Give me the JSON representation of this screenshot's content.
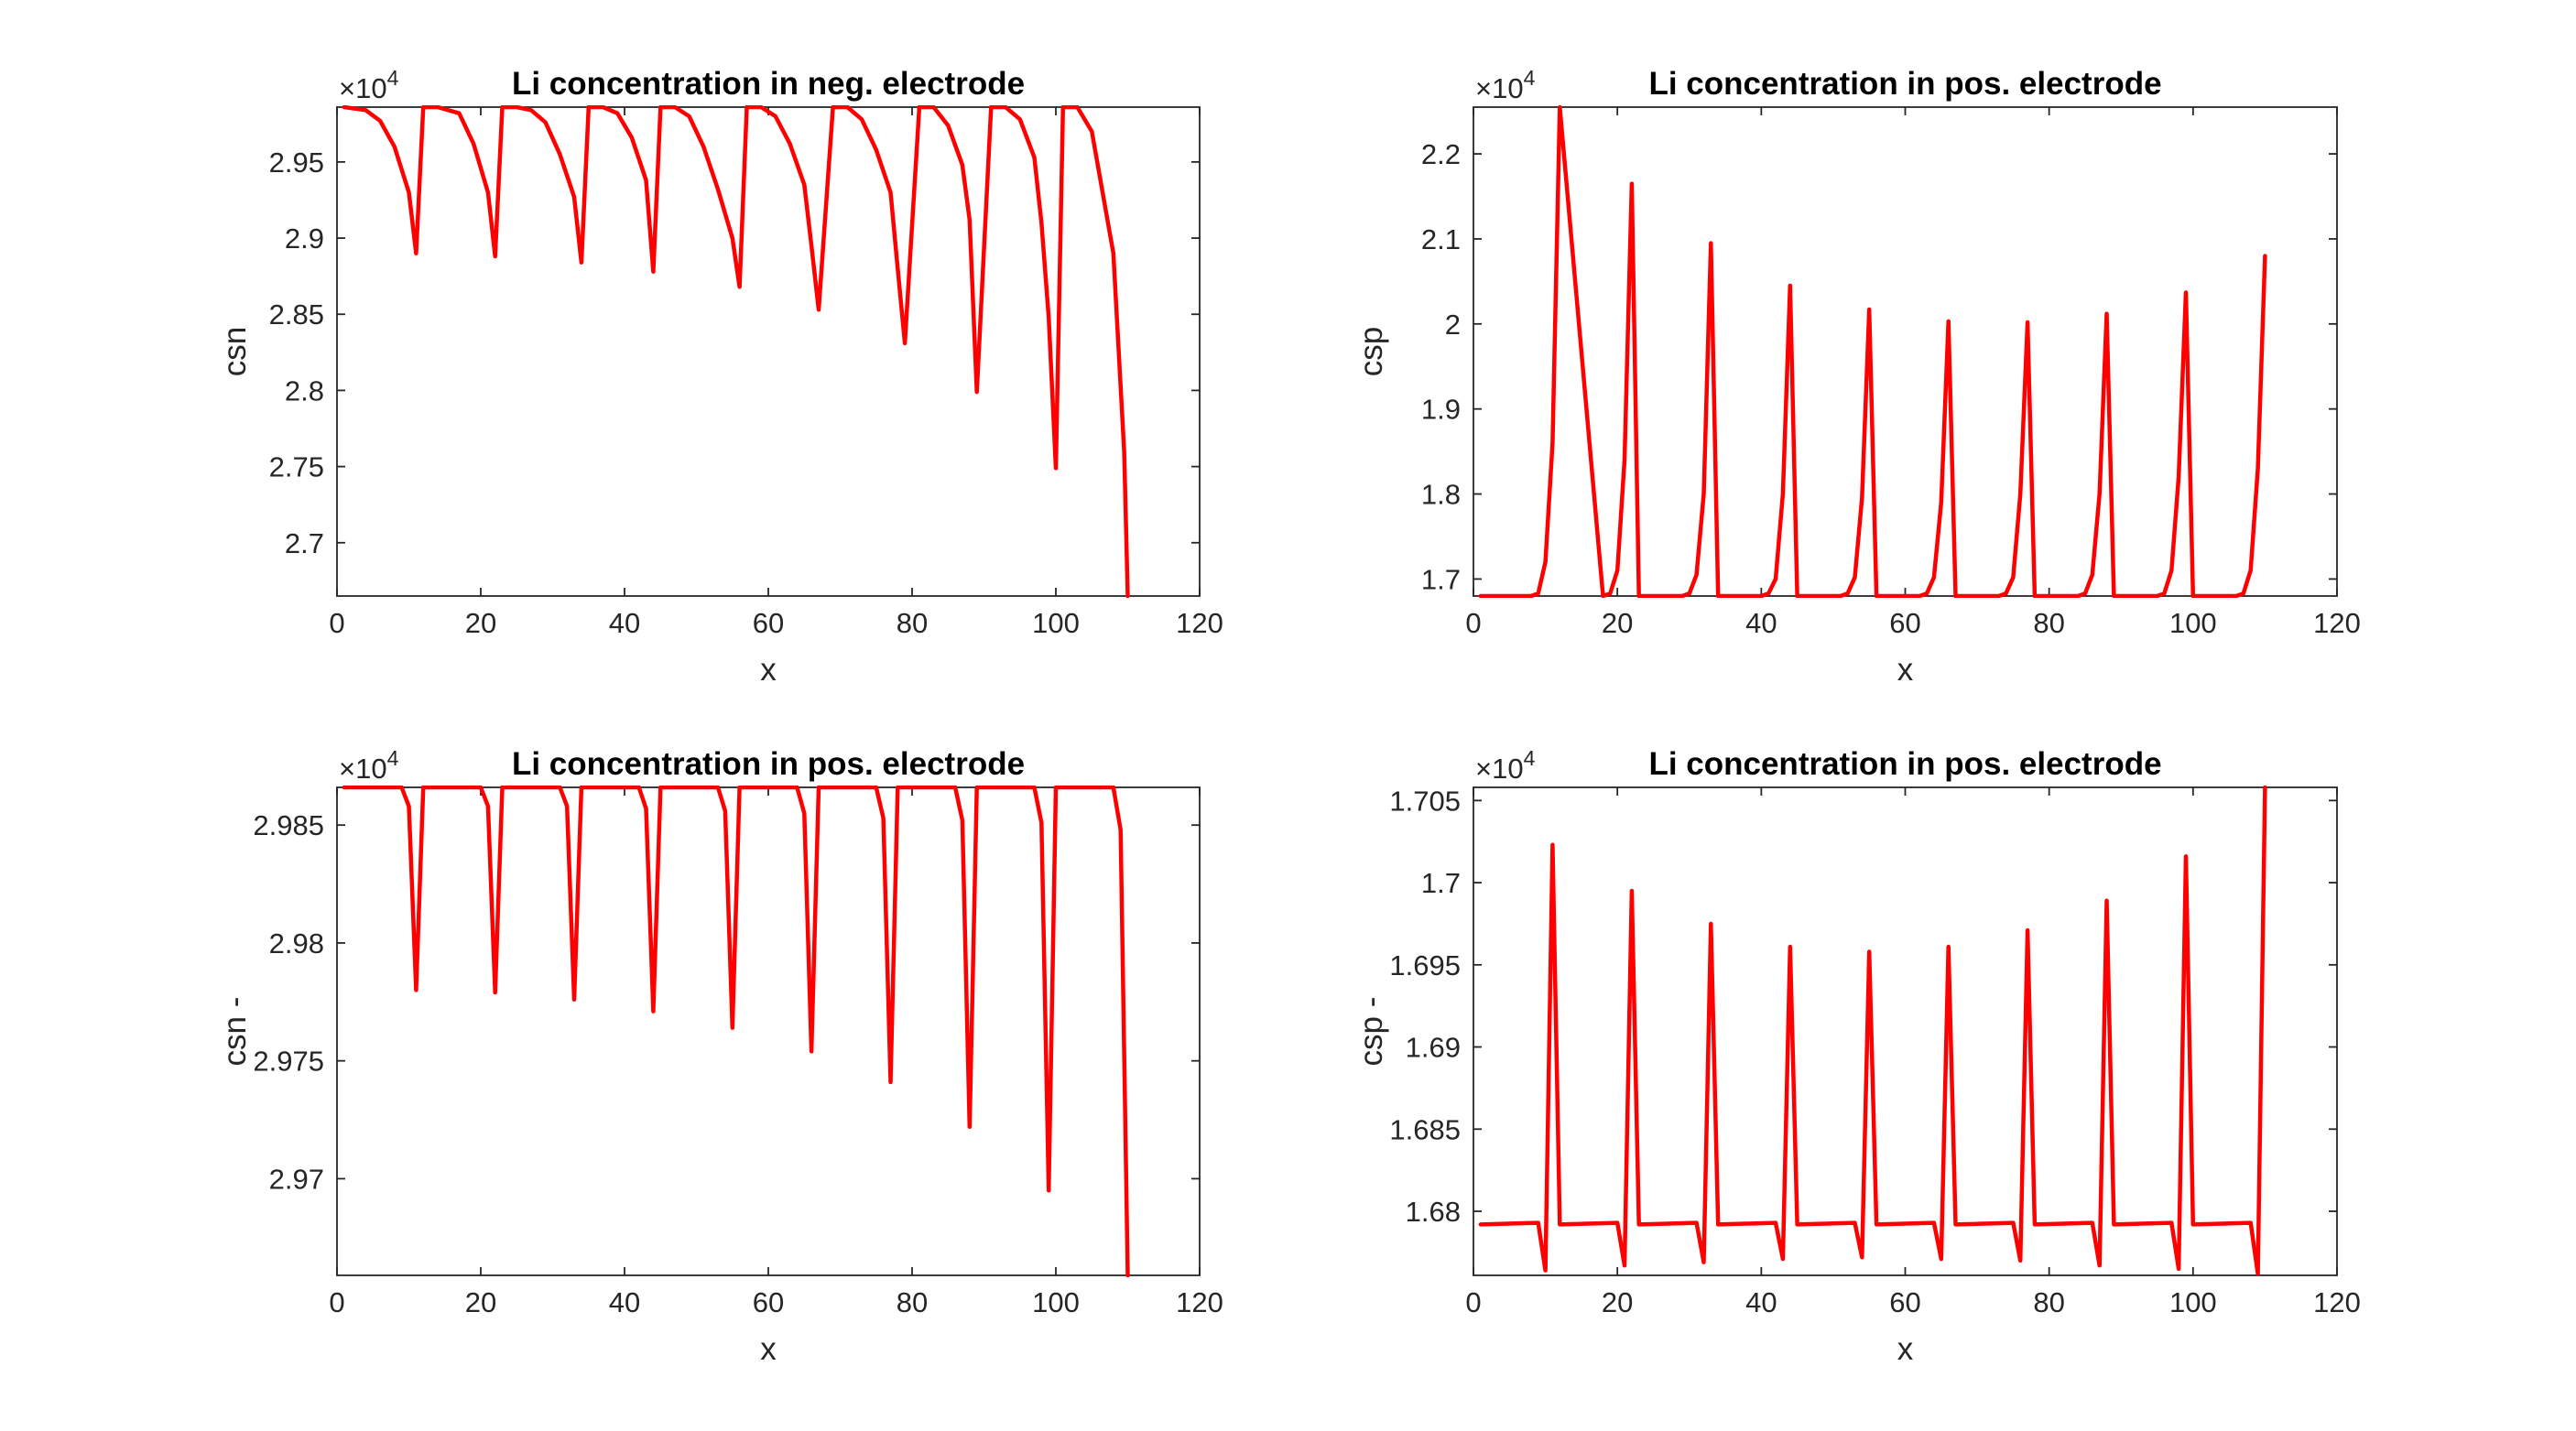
{
  "colors": {
    "series": "#ff0000",
    "axis": "#262626"
  },
  "chart_data": [
    {
      "type": "line",
      "title": "Li concentration in neg. electrode",
      "xlabel": "x",
      "ylabel": "csn",
      "exponent": "4",
      "multiplier": "×10",
      "xlim": [
        0,
        120
      ],
      "ylim": [
        2.665,
        2.986
      ],
      "xticks": [
        "0",
        "20",
        "40",
        "60",
        "80",
        "100",
        "120"
      ],
      "yticks": [
        "2.7",
        "2.75",
        "2.8",
        "2.85",
        "2.9",
        "2.95"
      ],
      "ytick_values": [
        2.7,
        2.75,
        2.8,
        2.85,
        2.9,
        2.95
      ],
      "x": [
        1,
        4,
        6,
        8,
        10,
        11,
        12,
        14,
        17,
        19,
        21,
        22,
        23,
        25,
        27,
        29,
        31,
        33,
        34,
        35,
        37,
        39,
        41,
        43,
        44,
        45,
        47,
        49,
        51,
        53,
        55,
        56,
        57,
        59,
        61,
        63,
        65,
        66,
        67,
        69,
        71,
        73,
        75,
        77,
        78,
        79,
        81,
        83,
        85,
        87,
        88,
        89,
        91,
        93,
        95,
        97,
        98,
        99,
        100,
        101,
        103,
        105,
        108,
        109.5,
        110
      ],
      "y": [
        2.986,
        2.984,
        2.977,
        2.96,
        2.93,
        2.89,
        2.986,
        2.986,
        2.982,
        2.962,
        2.93,
        2.888,
        2.986,
        2.986,
        2.984,
        2.976,
        2.955,
        2.927,
        2.884,
        2.986,
        2.986,
        2.982,
        2.966,
        2.938,
        2.878,
        2.986,
        2.986,
        2.98,
        2.96,
        2.932,
        2.9,
        2.868,
        2.986,
        2.986,
        2.98,
        2.962,
        2.935,
        2.895,
        2.853,
        2.986,
        2.986,
        2.978,
        2.958,
        2.93,
        2.88,
        2.831,
        2.986,
        2.986,
        2.974,
        2.948,
        2.912,
        2.799,
        2.986,
        2.986,
        2.978,
        2.953,
        2.91,
        2.848,
        2.749,
        2.986,
        2.986,
        2.97,
        2.89,
        2.76,
        2.665
      ]
    },
    {
      "type": "line",
      "title": "Li concentration in pos. electrode",
      "xlabel": "x",
      "ylabel": "csp",
      "exponent": "4",
      "multiplier": "×10",
      "xlim": [
        0,
        120
      ],
      "ylim": [
        1.68,
        2.255
      ],
      "xticks": [
        "0",
        "20",
        "40",
        "60",
        "80",
        "100",
        "120"
      ],
      "yticks": [
        "1.7",
        "1.8",
        "1.9",
        "2",
        "2.1",
        "2.2"
      ],
      "ytick_values": [
        1.7,
        1.8,
        1.9,
        2.0,
        2.1,
        2.2
      ],
      "x": [
        1,
        8,
        9,
        10,
        11,
        12,
        18,
        19,
        20,
        21,
        22,
        23,
        29,
        30,
        31,
        32,
        33,
        34,
        40,
        41,
        42,
        43,
        44,
        45,
        51,
        52,
        53,
        54,
        55,
        56,
        62,
        63,
        64,
        65,
        66,
        67,
        73,
        74,
        75,
        76,
        77,
        78,
        84,
        85,
        86,
        87,
        88,
        89,
        95,
        96,
        97,
        98,
        99,
        100,
        106,
        107,
        108,
        109,
        110
      ],
      "y": [
        1.68,
        1.68,
        1.683,
        1.72,
        1.86,
        2.255,
        1.68,
        1.683,
        1.71,
        1.84,
        2.165,
        1.68,
        1.68,
        1.683,
        1.705,
        1.8,
        2.095,
        1.68,
        1.68,
        1.683,
        1.7,
        1.8,
        2.045,
        1.68,
        1.68,
        1.683,
        1.702,
        1.795,
        2.017,
        1.68,
        1.68,
        1.683,
        1.702,
        1.79,
        2.003,
        1.68,
        1.68,
        1.683,
        1.702,
        1.8,
        2.002,
        1.68,
        1.68,
        1.683,
        1.705,
        1.8,
        2.012,
        1.68,
        1.68,
        1.683,
        1.71,
        1.82,
        2.037,
        1.68,
        1.68,
        1.683,
        1.71,
        1.83,
        2.08
      ]
    },
    {
      "type": "line",
      "title": "Li concentration in pos. electrode",
      "xlabel": "x",
      "ylabel": "csn -",
      "exponent": "4",
      "multiplier": "×10",
      "xlim": [
        0,
        120
      ],
      "ylim": [
        2.9659,
        2.9866
      ],
      "xticks": [
        "0",
        "20",
        "40",
        "60",
        "80",
        "100",
        "120"
      ],
      "yticks": [
        "2.97",
        "2.975",
        "2.98",
        "2.985"
      ],
      "ytick_values": [
        2.97,
        2.975,
        2.98,
        2.985
      ],
      "x": [
        1,
        9,
        10,
        11,
        12,
        20,
        21,
        22,
        23,
        31,
        32,
        33,
        34,
        42,
        43,
        44,
        45,
        53,
        54,
        55,
        56,
        64,
        65,
        66,
        67,
        75,
        76,
        77,
        78,
        86,
        87,
        88,
        89,
        97,
        98,
        99,
        100,
        108,
        109,
        110
      ],
      "y": [
        2.9866,
        2.9866,
        2.9858,
        2.978,
        2.9866,
        2.9866,
        2.9858,
        2.9779,
        2.9866,
        2.9866,
        2.9858,
        2.9776,
        2.9866,
        2.9866,
        2.9857,
        2.9771,
        2.9866,
        2.9866,
        2.9856,
        2.9764,
        2.9866,
        2.9866,
        2.9855,
        2.9754,
        2.9866,
        2.9866,
        2.9853,
        2.9741,
        2.9866,
        2.9866,
        2.9852,
        2.9722,
        2.9866,
        2.9866,
        2.9851,
        2.9695,
        2.9866,
        2.9866,
        2.9848,
        2.9659
      ]
    },
    {
      "type": "line",
      "title": "Li concentration in pos. electrode",
      "xlabel": "x",
      "ylabel": "csp -",
      "exponent": "4",
      "multiplier": "×10",
      "xlim": [
        0,
        120
      ],
      "ylim": [
        1.6761,
        1.7058
      ],
      "xticks": [
        "0",
        "20",
        "40",
        "60",
        "80",
        "100",
        "120"
      ],
      "yticks": [
        "1.68",
        "1.685",
        "1.69",
        "1.695",
        "1.7",
        "1.705"
      ],
      "ytick_values": [
        1.68,
        1.685,
        1.69,
        1.695,
        1.7,
        1.705
      ],
      "x": [
        1,
        9,
        10,
        11,
        12,
        20,
        21,
        22,
        23,
        31,
        32,
        33,
        34,
        42,
        43,
        44,
        45,
        53,
        54,
        55,
        56,
        64,
        65,
        66,
        67,
        75,
        76,
        77,
        78,
        86,
        87,
        88,
        89,
        97,
        98,
        99,
        100,
        108,
        109,
        110
      ],
      "y": [
        1.6792,
        1.6793,
        1.6764,
        1.7023,
        1.6792,
        1.6793,
        1.6767,
        1.6995,
        1.6792,
        1.6793,
        1.6769,
        1.6975,
        1.6792,
        1.6793,
        1.6771,
        1.6961,
        1.6792,
        1.6793,
        1.6772,
        1.6958,
        1.6792,
        1.6793,
        1.6771,
        1.6961,
        1.6792,
        1.6793,
        1.677,
        1.6971,
        1.6792,
        1.6793,
        1.6767,
        1.6989,
        1.6792,
        1.6793,
        1.6765,
        1.7016,
        1.6792,
        1.6793,
        1.6762,
        1.7058
      ]
    }
  ]
}
